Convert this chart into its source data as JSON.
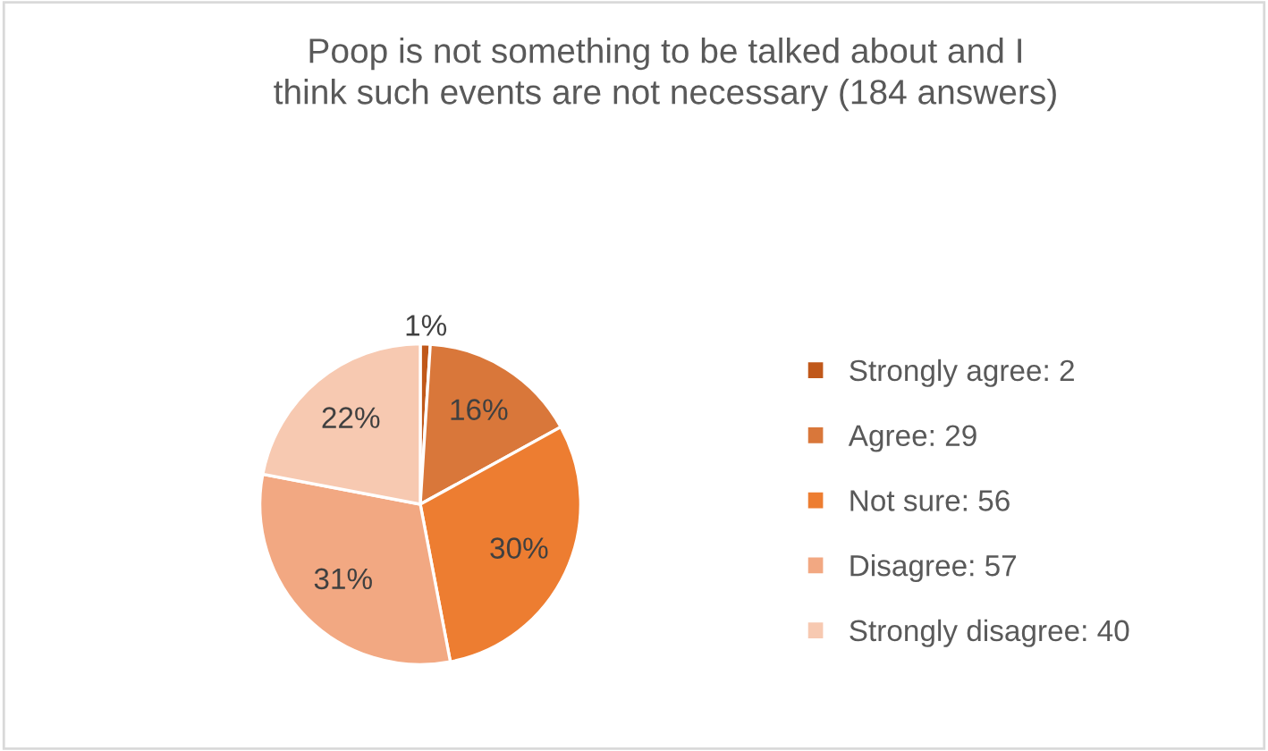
{
  "chart_data": {
    "type": "pie",
    "title": "Poop is not something to be talked about and I think such events are not necessary (184 answers)",
    "categories": [
      "Strongly agree: 2",
      "Agree: 29",
      "Not sure: 56",
      "Disagree: 57",
      "Strongly disagree: 40"
    ],
    "values": [
      1,
      16,
      30,
      31,
      22
    ],
    "value_labels": [
      "1%",
      "16%",
      "30%",
      "31%",
      "22%"
    ],
    "colors": [
      "#c0581a",
      "#d9773a",
      "#ed7d31",
      "#f2a882",
      "#f7c9b1"
    ],
    "legend": "right"
  }
}
